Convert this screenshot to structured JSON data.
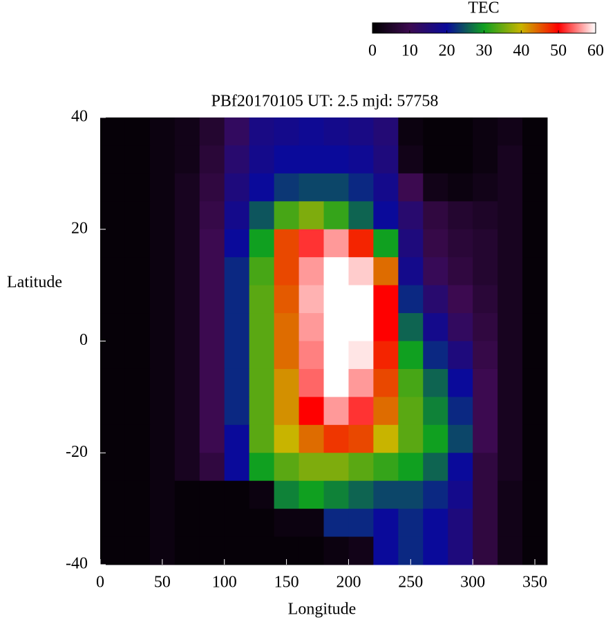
{
  "chart_data": {
    "type": "heatmap",
    "title": "PBf20170105  UT: 2.5  mjd: 57758",
    "xlabel": "Longitude",
    "ylabel": "Latitude",
    "colorbar_label": "TEC",
    "x": [
      10,
      30,
      50,
      70,
      90,
      110,
      130,
      150,
      170,
      190,
      210,
      230,
      250,
      270,
      290,
      310,
      330,
      350
    ],
    "y": [
      37.5,
      32.5,
      27.5,
      22.5,
      17.5,
      12.5,
      7.5,
      2.5,
      -2.5,
      -7.5,
      -12.5,
      -17.5,
      -22.5,
      -27.5,
      -32.5,
      -37.5
    ],
    "z": [
      [
        1,
        1,
        2,
        3,
        6,
        12,
        17,
        18,
        19,
        18,
        17,
        15,
        2,
        1,
        1,
        2,
        3,
        1
      ],
      [
        1,
        1,
        2,
        3,
        7,
        14,
        18,
        20,
        20,
        20,
        19,
        16,
        3,
        1,
        1,
        2,
        4,
        1
      ],
      [
        1,
        1,
        2,
        4,
        8,
        16,
        20,
        23,
        24,
        24,
        22,
        18,
        10,
        3,
        2,
        3,
        4,
        1
      ],
      [
        1,
        1,
        2,
        4,
        9,
        18,
        25,
        33,
        36,
        32,
        26,
        20,
        14,
        8,
        6,
        5,
        4,
        1
      ],
      [
        1,
        1,
        2,
        4,
        10,
        20,
        30,
        46,
        52,
        56,
        48,
        30,
        16,
        9,
        7,
        6,
        4,
        1
      ],
      [
        1,
        1,
        2,
        4,
        10,
        22,
        33,
        46,
        56,
        60,
        58,
        44,
        18,
        11,
        8,
        6,
        4,
        1
      ],
      [
        1,
        1,
        2,
        4,
        10,
        22,
        34,
        45,
        57,
        60,
        60,
        50,
        22,
        14,
        10,
        7,
        4,
        1
      ],
      [
        1,
        1,
        2,
        4,
        10,
        22,
        34,
        44,
        56,
        60,
        60,
        50,
        26,
        18,
        12,
        8,
        4,
        1
      ],
      [
        1,
        1,
        2,
        4,
        10,
        22,
        34,
        44,
        55,
        60,
        59,
        48,
        30,
        22,
        16,
        9,
        4,
        1
      ],
      [
        1,
        1,
        2,
        4,
        10,
        22,
        34,
        42,
        54,
        60,
        56,
        46,
        33,
        26,
        20,
        10,
        4,
        1
      ],
      [
        1,
        1,
        2,
        4,
        10,
        22,
        34,
        42,
        50,
        56,
        52,
        44,
        34,
        28,
        22,
        10,
        4,
        1
      ],
      [
        1,
        1,
        2,
        4,
        10,
        20,
        34,
        40,
        44,
        47,
        46,
        40,
        34,
        30,
        24,
        10,
        4,
        1
      ],
      [
        1,
        1,
        2,
        4,
        8,
        20,
        30,
        34,
        36,
        36,
        34,
        32,
        30,
        26,
        20,
        8,
        4,
        1
      ],
      [
        1,
        1,
        2,
        1,
        1,
        1,
        2,
        28,
        30,
        28,
        26,
        24,
        24,
        22,
        18,
        8,
        3,
        1
      ],
      [
        1,
        1,
        2,
        1,
        1,
        1,
        1,
        2,
        2,
        22,
        22,
        20,
        22,
        20,
        16,
        8,
        3,
        1
      ],
      [
        1,
        1,
        2,
        1,
        1,
        1,
        1,
        1,
        1,
        2,
        3,
        20,
        22,
        20,
        16,
        8,
        3,
        1
      ]
    ],
    "xlim": [
      0,
      360
    ],
    "xticks": [
      0,
      50,
      100,
      150,
      200,
      250,
      300,
      350
    ],
    "ylim": [
      -40,
      40
    ],
    "yticks": [
      -40,
      -20,
      0,
      20,
      40
    ],
    "zlim": [
      0,
      60
    ],
    "zticks": [
      0,
      10,
      20,
      30,
      40,
      50,
      60
    ],
    "colormap": [
      "#000000",
      "#3c0a50",
      "#0a0a9a",
      "#10a020",
      "#c8b400",
      "#ff0000",
      "#ffffff"
    ]
  }
}
